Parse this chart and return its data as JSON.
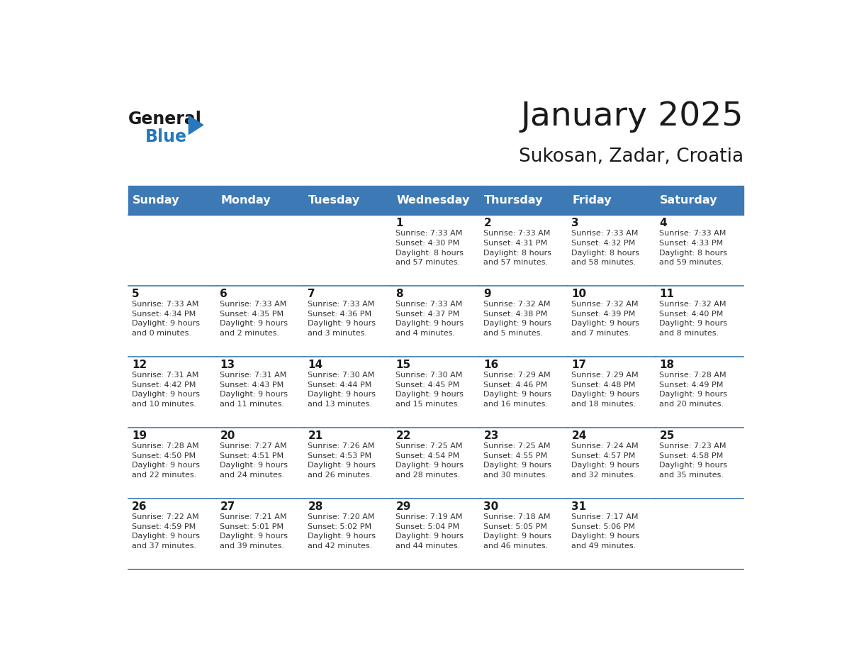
{
  "title": "January 2025",
  "subtitle": "Sukosan, Zadar, Croatia",
  "header_color": "#3d7ab5",
  "header_text_color": "#ffffff",
  "border_color": "#3d7ab5",
  "days_of_week": [
    "Sunday",
    "Monday",
    "Tuesday",
    "Wednesday",
    "Thursday",
    "Friday",
    "Saturday"
  ],
  "weeks": [
    [
      {
        "day": "",
        "text": ""
      },
      {
        "day": "",
        "text": ""
      },
      {
        "day": "",
        "text": ""
      },
      {
        "day": "1",
        "text": "Sunrise: 7:33 AM\nSunset: 4:30 PM\nDaylight: 8 hours\nand 57 minutes."
      },
      {
        "day": "2",
        "text": "Sunrise: 7:33 AM\nSunset: 4:31 PM\nDaylight: 8 hours\nand 57 minutes."
      },
      {
        "day": "3",
        "text": "Sunrise: 7:33 AM\nSunset: 4:32 PM\nDaylight: 8 hours\nand 58 minutes."
      },
      {
        "day": "4",
        "text": "Sunrise: 7:33 AM\nSunset: 4:33 PM\nDaylight: 8 hours\nand 59 minutes."
      }
    ],
    [
      {
        "day": "5",
        "text": "Sunrise: 7:33 AM\nSunset: 4:34 PM\nDaylight: 9 hours\nand 0 minutes."
      },
      {
        "day": "6",
        "text": "Sunrise: 7:33 AM\nSunset: 4:35 PM\nDaylight: 9 hours\nand 2 minutes."
      },
      {
        "day": "7",
        "text": "Sunrise: 7:33 AM\nSunset: 4:36 PM\nDaylight: 9 hours\nand 3 minutes."
      },
      {
        "day": "8",
        "text": "Sunrise: 7:33 AM\nSunset: 4:37 PM\nDaylight: 9 hours\nand 4 minutes."
      },
      {
        "day": "9",
        "text": "Sunrise: 7:32 AM\nSunset: 4:38 PM\nDaylight: 9 hours\nand 5 minutes."
      },
      {
        "day": "10",
        "text": "Sunrise: 7:32 AM\nSunset: 4:39 PM\nDaylight: 9 hours\nand 7 minutes."
      },
      {
        "day": "11",
        "text": "Sunrise: 7:32 AM\nSunset: 4:40 PM\nDaylight: 9 hours\nand 8 minutes."
      }
    ],
    [
      {
        "day": "12",
        "text": "Sunrise: 7:31 AM\nSunset: 4:42 PM\nDaylight: 9 hours\nand 10 minutes."
      },
      {
        "day": "13",
        "text": "Sunrise: 7:31 AM\nSunset: 4:43 PM\nDaylight: 9 hours\nand 11 minutes."
      },
      {
        "day": "14",
        "text": "Sunrise: 7:30 AM\nSunset: 4:44 PM\nDaylight: 9 hours\nand 13 minutes."
      },
      {
        "day": "15",
        "text": "Sunrise: 7:30 AM\nSunset: 4:45 PM\nDaylight: 9 hours\nand 15 minutes."
      },
      {
        "day": "16",
        "text": "Sunrise: 7:29 AM\nSunset: 4:46 PM\nDaylight: 9 hours\nand 16 minutes."
      },
      {
        "day": "17",
        "text": "Sunrise: 7:29 AM\nSunset: 4:48 PM\nDaylight: 9 hours\nand 18 minutes."
      },
      {
        "day": "18",
        "text": "Sunrise: 7:28 AM\nSunset: 4:49 PM\nDaylight: 9 hours\nand 20 minutes."
      }
    ],
    [
      {
        "day": "19",
        "text": "Sunrise: 7:28 AM\nSunset: 4:50 PM\nDaylight: 9 hours\nand 22 minutes."
      },
      {
        "day": "20",
        "text": "Sunrise: 7:27 AM\nSunset: 4:51 PM\nDaylight: 9 hours\nand 24 minutes."
      },
      {
        "day": "21",
        "text": "Sunrise: 7:26 AM\nSunset: 4:53 PM\nDaylight: 9 hours\nand 26 minutes."
      },
      {
        "day": "22",
        "text": "Sunrise: 7:25 AM\nSunset: 4:54 PM\nDaylight: 9 hours\nand 28 minutes."
      },
      {
        "day": "23",
        "text": "Sunrise: 7:25 AM\nSunset: 4:55 PM\nDaylight: 9 hours\nand 30 minutes."
      },
      {
        "day": "24",
        "text": "Sunrise: 7:24 AM\nSunset: 4:57 PM\nDaylight: 9 hours\nand 32 minutes."
      },
      {
        "day": "25",
        "text": "Sunrise: 7:23 AM\nSunset: 4:58 PM\nDaylight: 9 hours\nand 35 minutes."
      }
    ],
    [
      {
        "day": "26",
        "text": "Sunrise: 7:22 AM\nSunset: 4:59 PM\nDaylight: 9 hours\nand 37 minutes."
      },
      {
        "day": "27",
        "text": "Sunrise: 7:21 AM\nSunset: 5:01 PM\nDaylight: 9 hours\nand 39 minutes."
      },
      {
        "day": "28",
        "text": "Sunrise: 7:20 AM\nSunset: 5:02 PM\nDaylight: 9 hours\nand 42 minutes."
      },
      {
        "day": "29",
        "text": "Sunrise: 7:19 AM\nSunset: 5:04 PM\nDaylight: 9 hours\nand 44 minutes."
      },
      {
        "day": "30",
        "text": "Sunrise: 7:18 AM\nSunset: 5:05 PM\nDaylight: 9 hours\nand 46 minutes."
      },
      {
        "day": "31",
        "text": "Sunrise: 7:17 AM\nSunset: 5:06 PM\nDaylight: 9 hours\nand 49 minutes."
      },
      {
        "day": "",
        "text": ""
      }
    ]
  ],
  "logo_general_color": "#1a1a1a",
  "logo_blue_color": "#2878be",
  "logo_triangle_color": "#2878be"
}
